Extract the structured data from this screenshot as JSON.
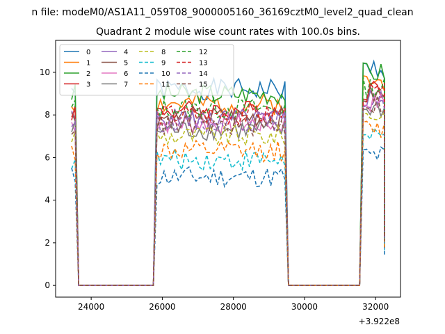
{
  "suptitle": "n file: modeM0/AS1A11_059T08_9000005160_36169cztM0_level2_quad_clean",
  "chart_data": {
    "type": "line",
    "title": "Quadrant 2 module wise count rates with 100.0s bins.",
    "xlabel": "",
    "ylabel": "",
    "x_offset_label": "+3.922e8",
    "xlim": [
      23000,
      32700
    ],
    "ylim": [
      -0.55,
      11.5
    ],
    "x_ticks": [
      24000,
      26000,
      28000,
      30000,
      32000
    ],
    "x_tick_labels": [
      "24000",
      "26000",
      "28000",
      "30000",
      "32000"
    ],
    "y_ticks": [
      0,
      2,
      4,
      6,
      8,
      10
    ],
    "y_tick_labels": [
      "0",
      "2",
      "4",
      "6",
      "8",
      "10"
    ],
    "grid": false,
    "legend_position": "top-left",
    "legend_columns": 4,
    "segments": [
      {
        "start": 23450,
        "end": 23550
      },
      {
        "start": 25850,
        "end": 29450
      },
      {
        "start": 31650,
        "end": 32250
      }
    ],
    "gaps_value": 0,
    "series": [
      {
        "name": "0",
        "color": "#1f77b4",
        "dash": "solid",
        "level": 9.2,
        "seed": 1
      },
      {
        "name": "1",
        "color": "#ff7f0e",
        "dash": "solid",
        "level": 8.5,
        "seed": 2
      },
      {
        "name": "2",
        "color": "#2ca02c",
        "dash": "solid",
        "level": 9.0,
        "seed": 3
      },
      {
        "name": "3",
        "color": "#d62728",
        "dash": "solid",
        "level": 8.2,
        "seed": 4
      },
      {
        "name": "4",
        "color": "#9467bd",
        "dash": "solid",
        "level": 7.8,
        "seed": 5
      },
      {
        "name": "5",
        "color": "#8c564b",
        "dash": "solid",
        "level": 7.9,
        "seed": 6
      },
      {
        "name": "6",
        "color": "#e377c2",
        "dash": "solid",
        "level": 7.6,
        "seed": 7
      },
      {
        "name": "7",
        "color": "#7f7f7f",
        "dash": "solid",
        "level": 7.3,
        "seed": 8
      },
      {
        "name": "8",
        "color": "#bcbd22",
        "dash": "dashed",
        "level": 7.0,
        "seed": 9
      },
      {
        "name": "9",
        "color": "#17becf",
        "dash": "dashed",
        "level": 5.9,
        "seed": 10
      },
      {
        "name": "10",
        "color": "#1f77b4",
        "dash": "dashed",
        "level": 5.1,
        "seed": 11
      },
      {
        "name": "11",
        "color": "#ff7f0e",
        "dash": "dashed",
        "level": 6.3,
        "seed": 12
      },
      {
        "name": "12",
        "color": "#2ca02c",
        "dash": "dashed",
        "level": 8.3,
        "seed": 13
      },
      {
        "name": "13",
        "color": "#d62728",
        "dash": "dashed",
        "level": 8.0,
        "seed": 14
      },
      {
        "name": "14",
        "color": "#9467bd",
        "dash": "dashed",
        "level": 7.7,
        "seed": 15
      },
      {
        "name": "15",
        "color": "#8c564b",
        "dash": "dashed",
        "level": 7.5,
        "seed": 16
      }
    ]
  }
}
